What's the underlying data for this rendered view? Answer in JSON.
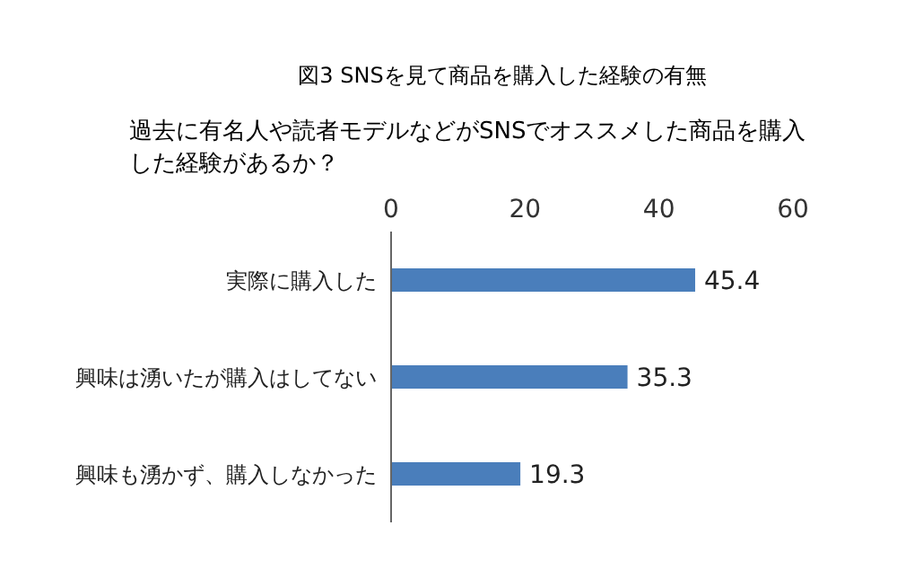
{
  "chart_data": {
    "type": "bar",
    "orientation": "horizontal",
    "title": "図3  SNSを見て商品を購入した経験の有無",
    "subtitle": "過去に有名人や読者モデルなどがSNSでオススメした商品を購入した経験があるか？",
    "categories": [
      "実際に購入した",
      "興味は湧いたが購入はしてない",
      "興味も湧かず、購入しなかった"
    ],
    "values": [
      45.4,
      35.3,
      19.3
    ],
    "color": "#4a7ebb",
    "xlim": [
      0,
      60
    ],
    "xticks": [
      0,
      20,
      40,
      60
    ],
    "data_labels": true
  }
}
